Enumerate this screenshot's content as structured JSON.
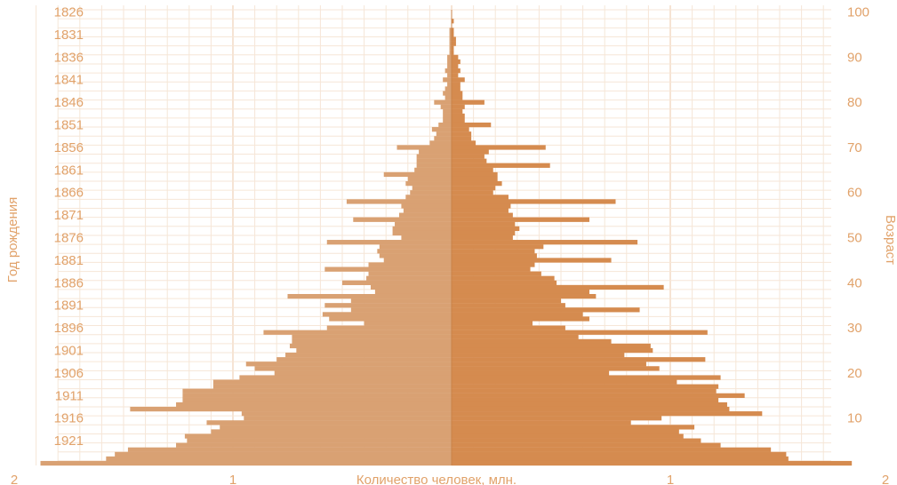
{
  "chart_data": {
    "type": "bar",
    "orientation": "horizontal",
    "title": "",
    "xlabel": "Количество человек, млн.",
    "ylabel_left": "Год рождения",
    "ylabel_right": "Возраст",
    "grid": true,
    "x_range": [
      -2,
      2
    ],
    "x_tick_labels": [
      "2",
      "1",
      "1",
      "2"
    ],
    "x_ticks": [
      -2,
      -1,
      1,
      2
    ],
    "birth_years_labeled": [
      "1826",
      "1831",
      "1836",
      "1841",
      "1846",
      "1851",
      "1856",
      "1861",
      "1866",
      "1871",
      "1876",
      "1881",
      "1886",
      "1891",
      "1896",
      "1901",
      "1906",
      "1911",
      "1916",
      "1921"
    ],
    "age_ticks_labeled": [
      "100",
      "90",
      "80",
      "70",
      "60",
      "50",
      "40",
      "30",
      "20",
      "10"
    ],
    "ages": [
      100,
      99,
      98,
      97,
      96,
      95,
      94,
      93,
      92,
      91,
      90,
      89,
      88,
      87,
      86,
      85,
      84,
      83,
      82,
      81,
      80,
      79,
      78,
      77,
      76,
      75,
      74,
      73,
      72,
      71,
      70,
      69,
      68,
      67,
      66,
      65,
      64,
      63,
      62,
      61,
      60,
      59,
      58,
      57,
      56,
      55,
      54,
      53,
      52,
      51,
      50,
      49,
      48,
      47,
      46,
      45,
      44,
      43,
      42,
      41,
      40,
      39,
      38,
      37,
      36,
      35,
      34,
      33,
      32,
      31,
      30,
      29,
      28,
      27,
      26,
      25,
      24,
      23,
      22,
      21,
      20,
      19,
      18,
      17,
      16,
      15,
      14,
      13,
      12,
      11,
      10,
      9,
      8,
      7,
      6,
      5,
      4,
      3,
      2,
      1,
      0
    ],
    "series": [
      {
        "side": "left",
        "color": "#D9A173",
        "values": [
          0.0,
          0.0,
          0.0,
          0.0,
          0.01,
          0.01,
          0.01,
          0.01,
          0.01,
          0.01,
          0.02,
          0.02,
          0.02,
          0.03,
          0.02,
          0.04,
          0.02,
          0.03,
          0.04,
          0.03,
          0.08,
          0.05,
          0.04,
          0.04,
          0.04,
          0.06,
          0.09,
          0.07,
          0.08,
          0.1,
          0.25,
          0.15,
          0.16,
          0.16,
          0.16,
          0.17,
          0.31,
          0.2,
          0.21,
          0.18,
          0.19,
          0.21,
          0.48,
          0.23,
          0.22,
          0.24,
          0.45,
          0.26,
          0.27,
          0.27,
          0.23,
          0.57,
          0.33,
          0.34,
          0.33,
          0.31,
          0.38,
          0.58,
          0.38,
          0.39,
          0.5,
          0.37,
          0.35,
          0.75,
          0.46,
          0.58,
          0.46,
          0.59,
          0.56,
          0.4,
          0.57,
          0.86,
          0.73,
          0.73,
          0.74,
          0.71,
          0.76,
          0.8,
          0.94,
          0.9,
          0.81,
          0.97,
          1.09,
          1.09,
          1.23,
          1.23,
          1.23,
          1.26,
          1.47,
          0.96,
          0.95,
          1.12,
          1.06,
          1.1,
          1.22,
          1.21,
          1.26,
          1.48,
          1.54,
          1.58,
          1.88
        ]
      },
      {
        "side": "right",
        "color": "#D58B4F",
        "values": [
          0.0,
          0.0,
          0.01,
          0.0,
          0.01,
          0.01,
          0.02,
          0.02,
          0.01,
          0.01,
          0.03,
          0.04,
          0.03,
          0.04,
          0.03,
          0.06,
          0.04,
          0.04,
          0.05,
          0.05,
          0.15,
          0.06,
          0.05,
          0.06,
          0.06,
          0.18,
          0.08,
          0.09,
          0.09,
          0.11,
          0.43,
          0.17,
          0.15,
          0.16,
          0.45,
          0.19,
          0.21,
          0.21,
          0.23,
          0.2,
          0.19,
          0.26,
          0.75,
          0.27,
          0.26,
          0.28,
          0.63,
          0.29,
          0.31,
          0.29,
          0.28,
          0.85,
          0.42,
          0.38,
          0.39,
          0.73,
          0.38,
          0.36,
          0.41,
          0.47,
          0.48,
          0.97,
          0.63,
          0.66,
          0.5,
          0.52,
          0.86,
          0.6,
          0.63,
          0.37,
          0.52,
          1.17,
          0.58,
          0.73,
          0.91,
          0.92,
          0.79,
          1.16,
          0.89,
          0.95,
          0.72,
          1.23,
          1.03,
          1.22,
          1.21,
          1.34,
          1.22,
          1.26,
          1.27,
          1.42,
          0.96,
          0.82,
          1.11,
          1.04,
          1.06,
          1.14,
          1.23,
          1.46,
          1.53,
          1.54,
          1.83
        ]
      }
    ]
  }
}
